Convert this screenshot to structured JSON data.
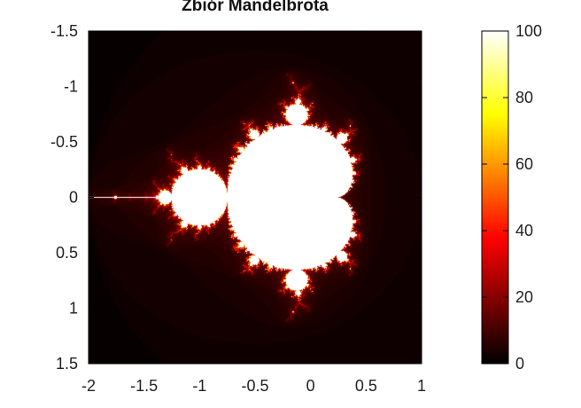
{
  "chart_data": {
    "type": "heatmap",
    "title": "Zbiór Mandelbrota",
    "xlabel": "",
    "ylabel": "",
    "xlim": [
      -2,
      1
    ],
    "ylim": [
      -1.5,
      1.5
    ],
    "y_axis_reversed": true,
    "x_ticks": [
      -2,
      -1.5,
      -1,
      -0.5,
      0,
      0.5,
      1
    ],
    "y_ticks": [
      -1.5,
      -1,
      -0.5,
      0,
      0.5,
      1,
      1.5
    ],
    "x_tick_labels": [
      "-2",
      "-1.5",
      "-1",
      "-0.5",
      "0",
      "0.5",
      "1"
    ],
    "y_tick_labels": [
      "-1.5",
      "-1",
      "-0.5",
      "0",
      "0.5",
      "1",
      "1.5"
    ],
    "max_iterations": 100,
    "colormap": "hot",
    "colorbar": {
      "range": [
        0,
        100
      ],
      "ticks": [
        0,
        20,
        40,
        60,
        80,
        100
      ],
      "tick_labels": [
        "0",
        "20",
        "40",
        "60",
        "80",
        "100"
      ]
    },
    "grid": false
  }
}
